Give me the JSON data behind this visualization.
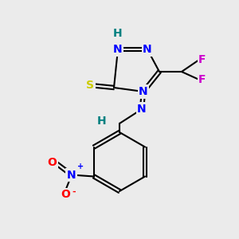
{
  "bg_color": "#ebebeb",
  "atom_colors": {
    "C": "#000000",
    "N": "#0000ff",
    "H": "#008080",
    "S": "#cccc00",
    "F": "#cc00cc",
    "O_red": "#ff0000",
    "bond": "#000000"
  },
  "figsize": [
    3.0,
    3.0
  ],
  "dpi": 100
}
